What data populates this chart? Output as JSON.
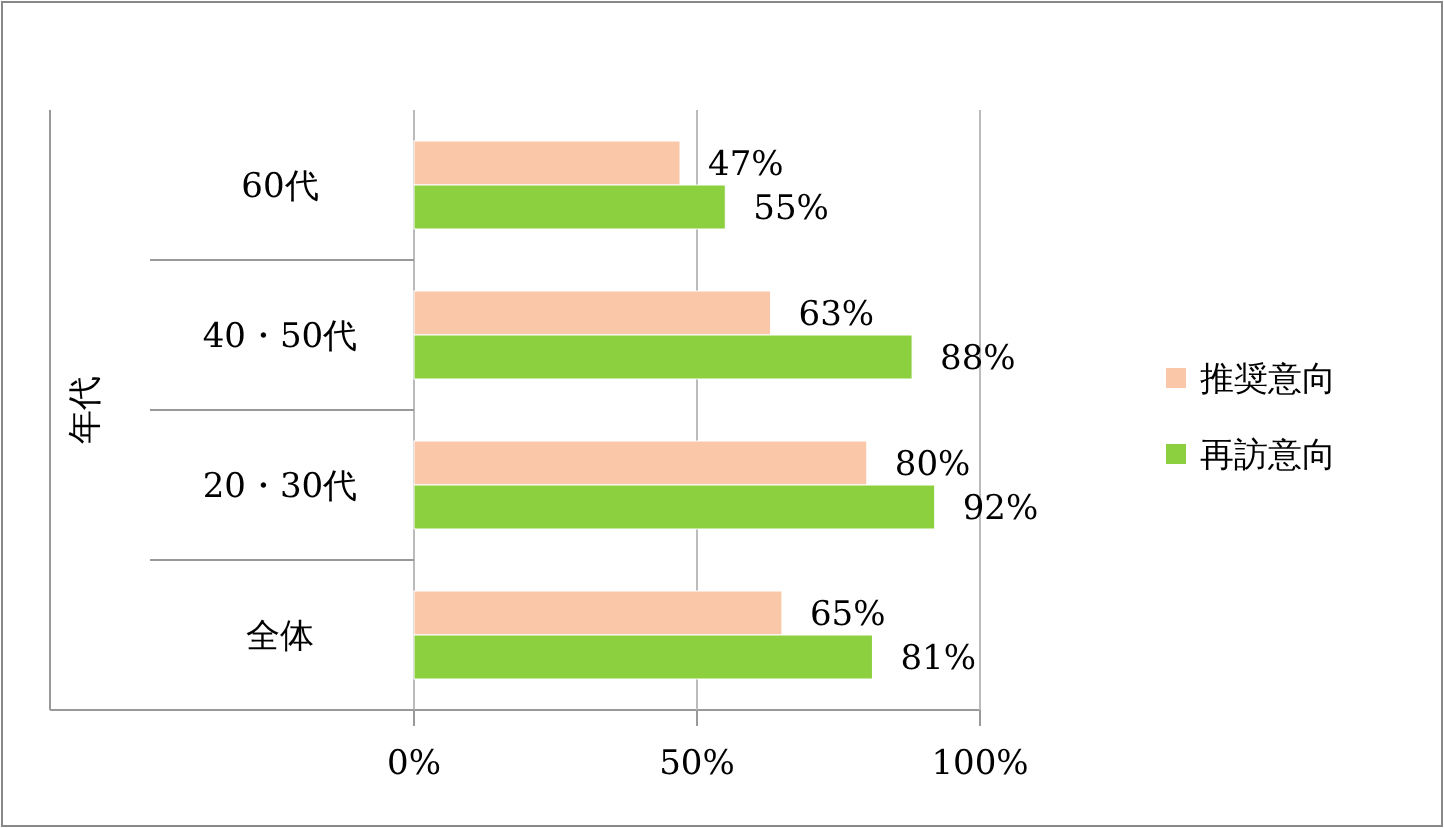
{
  "chart_data": {
    "type": "bar",
    "orientation": "horizontal",
    "ylabel": "年代",
    "categories": [
      "60代",
      "40・50代",
      "20・30代",
      "全体"
    ],
    "series": [
      {
        "name": "推奨意向",
        "color": "#fac8a8",
        "values": [
          47,
          63,
          80,
          65
        ],
        "value_labels": [
          "47%",
          "63%",
          "80%",
          "65%"
        ]
      },
      {
        "name": "再訪意向",
        "color": "#8cd040",
        "values": [
          55,
          88,
          92,
          81
        ],
        "value_labels": [
          "55%",
          "88%",
          "92%",
          "81%"
        ]
      }
    ],
    "xlim": [
      0,
      100
    ],
    "xticks": [
      {
        "value": 0,
        "label": "0%"
      },
      {
        "value": 50,
        "label": "50%"
      },
      {
        "value": 100,
        "label": "100%"
      }
    ],
    "grid": "x",
    "legend": "right"
  }
}
